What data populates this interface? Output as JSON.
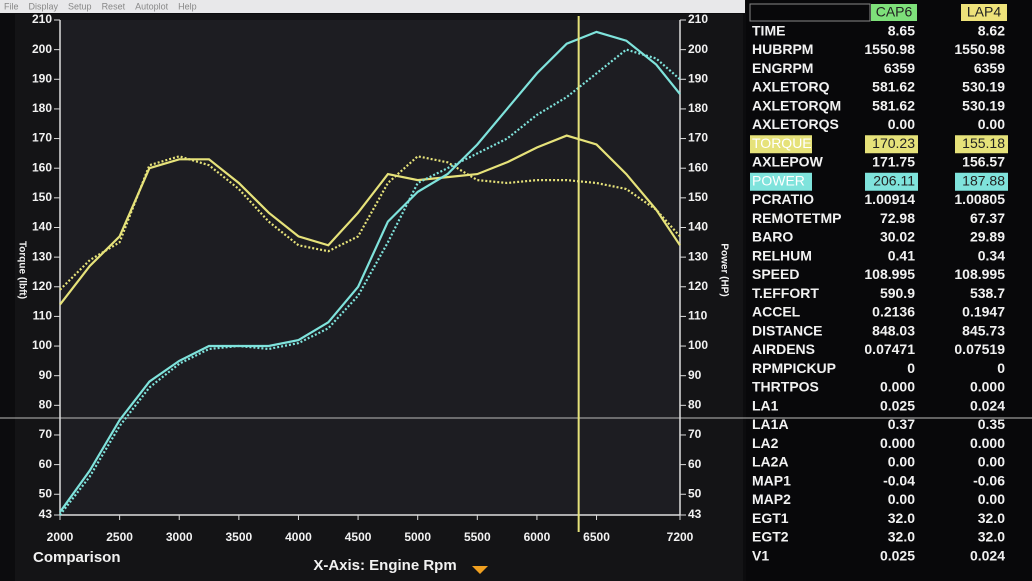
{
  "menu": [
    "File",
    "Display",
    "Setup",
    "Reset",
    "Autoplot",
    "Help"
  ],
  "chart_data": {
    "type": "line",
    "y_label": "Torque (lbft)",
    "y2_label": "Power (HP)",
    "x_label": "X-Axis: Engine Rpm",
    "footer": "Comparison",
    "x": [
      2000,
      2250,
      2500,
      2750,
      3000,
      3250,
      3500,
      3750,
      4000,
      4250,
      4500,
      4750,
      5000,
      5250,
      5500,
      5750,
      6000,
      6250,
      6500,
      6750,
      7000,
      7200
    ],
    "series": [
      {
        "color": "#e6e27a",
        "dash": false,
        "axis": "y",
        "values": [
          114,
          127,
          137,
          160,
          163,
          163,
          155,
          145,
          137,
          134,
          145,
          158,
          156,
          157,
          158,
          162,
          167,
          171,
          168,
          158,
          146,
          134
        ]
      },
      {
        "color": "#e6e27a",
        "dash": true,
        "axis": "y",
        "values": [
          119,
          129,
          135,
          161,
          164,
          161,
          153,
          142,
          134,
          132,
          137,
          155,
          164,
          162,
          156,
          155,
          156,
          156,
          155,
          153,
          146,
          137
        ]
      },
      {
        "color": "#7fe3dc",
        "dash": false,
        "axis": "y2",
        "values": [
          44,
          58,
          75,
          88,
          95,
          100,
          100,
          100,
          102,
          108,
          120,
          142,
          152,
          158,
          168,
          180,
          192,
          202,
          206,
          203,
          195,
          185
        ]
      },
      {
        "color": "#7fe3dc",
        "dash": true,
        "axis": "y2",
        "values": [
          43,
          56,
          73,
          86,
          94,
          99,
          100,
          99,
          101,
          106,
          117,
          135,
          155,
          160,
          165,
          170,
          178,
          184,
          192,
          200,
          197,
          190
        ]
      }
    ],
    "xlim": [
      2000,
      7200
    ],
    "xticks": [
      2000,
      2500,
      3000,
      3500,
      4000,
      4500,
      5000,
      5500,
      6000,
      6500,
      7200
    ],
    "ylim": [
      43,
      210
    ],
    "yticks": [
      43,
      50,
      60,
      70,
      80,
      90,
      100,
      110,
      120,
      130,
      140,
      150,
      160,
      170,
      180,
      190,
      200,
      210
    ],
    "y2lim": [
      43,
      210
    ],
    "y2ticks": [
      43,
      50,
      60,
      70,
      80,
      90,
      100,
      110,
      120,
      130,
      140,
      150,
      160,
      170,
      180,
      190,
      200,
      210
    ],
    "cursor_x": 6350,
    "cursor_color": "#e6e27a"
  },
  "table": {
    "columns": [
      {
        "label": "CAP6",
        "color": "#7ee07a"
      },
      {
        "label": "LAP4",
        "color": "#eee27a"
      }
    ],
    "rows": [
      {
        "name": "TIME",
        "values": [
          "8.65",
          "8.62"
        ]
      },
      {
        "name": "HUBRPM",
        "values": [
          "1550.98",
          "1550.98"
        ]
      },
      {
        "name": "ENGRPM",
        "values": [
          "6359",
          "6359"
        ]
      },
      {
        "name": "AXLETORQ",
        "values": [
          "581.62",
          "530.19"
        ]
      },
      {
        "name": "AXLETORQM",
        "values": [
          "581.62",
          "530.19"
        ]
      },
      {
        "name": "AXLETORQS",
        "values": [
          "0.00",
          "0.00"
        ]
      },
      {
        "name": "TORQUE",
        "values": [
          "170.23",
          "155.18"
        ],
        "color": "#e6e27a"
      },
      {
        "name": "AXLEPOW",
        "values": [
          "171.75",
          "156.57"
        ]
      },
      {
        "name": "POWER",
        "values": [
          "206.11",
          "187.88"
        ],
        "color": "#7fe3dc"
      },
      {
        "name": "PCRATIO",
        "values": [
          "1.00914",
          "1.00805"
        ]
      },
      {
        "name": "REMOTETMP",
        "values": [
          "72.98",
          "67.37"
        ]
      },
      {
        "name": "BARO",
        "values": [
          "30.02",
          "29.89"
        ]
      },
      {
        "name": "RELHUM",
        "values": [
          "0.41",
          "0.34"
        ]
      },
      {
        "name": "SPEED",
        "values": [
          "108.995",
          "108.995"
        ]
      },
      {
        "name": "T.EFFORT",
        "values": [
          "590.9",
          "538.7"
        ]
      },
      {
        "name": "ACCEL",
        "values": [
          "0.2136",
          "0.1947"
        ]
      },
      {
        "name": "DISTANCE",
        "values": [
          "848.03",
          "845.73"
        ]
      },
      {
        "name": "AIRDENS",
        "values": [
          "0.07471",
          "0.07519"
        ]
      },
      {
        "name": "RPMPICKUP",
        "values": [
          "0",
          "0"
        ]
      },
      {
        "name": "THRTPOS",
        "values": [
          "0.000",
          "0.000"
        ]
      },
      {
        "name": "LA1",
        "values": [
          "0.025",
          "0.024"
        ]
      },
      {
        "name": "LA1A",
        "values": [
          "0.37",
          "0.35"
        ]
      },
      {
        "name": "LA2",
        "values": [
          "0.000",
          "0.000"
        ]
      },
      {
        "name": "LA2A",
        "values": [
          "0.00",
          "0.00"
        ]
      },
      {
        "name": "MAP1",
        "values": [
          "-0.04",
          "-0.06"
        ]
      },
      {
        "name": "MAP2",
        "values": [
          "0.00",
          "0.00"
        ]
      },
      {
        "name": "EGT1",
        "values": [
          "32.0",
          "32.0"
        ]
      },
      {
        "name": "EGT2",
        "values": [
          "32.0",
          "32.0"
        ]
      },
      {
        "name": "V1",
        "values": [
          "0.025",
          "0.024"
        ]
      }
    ]
  }
}
